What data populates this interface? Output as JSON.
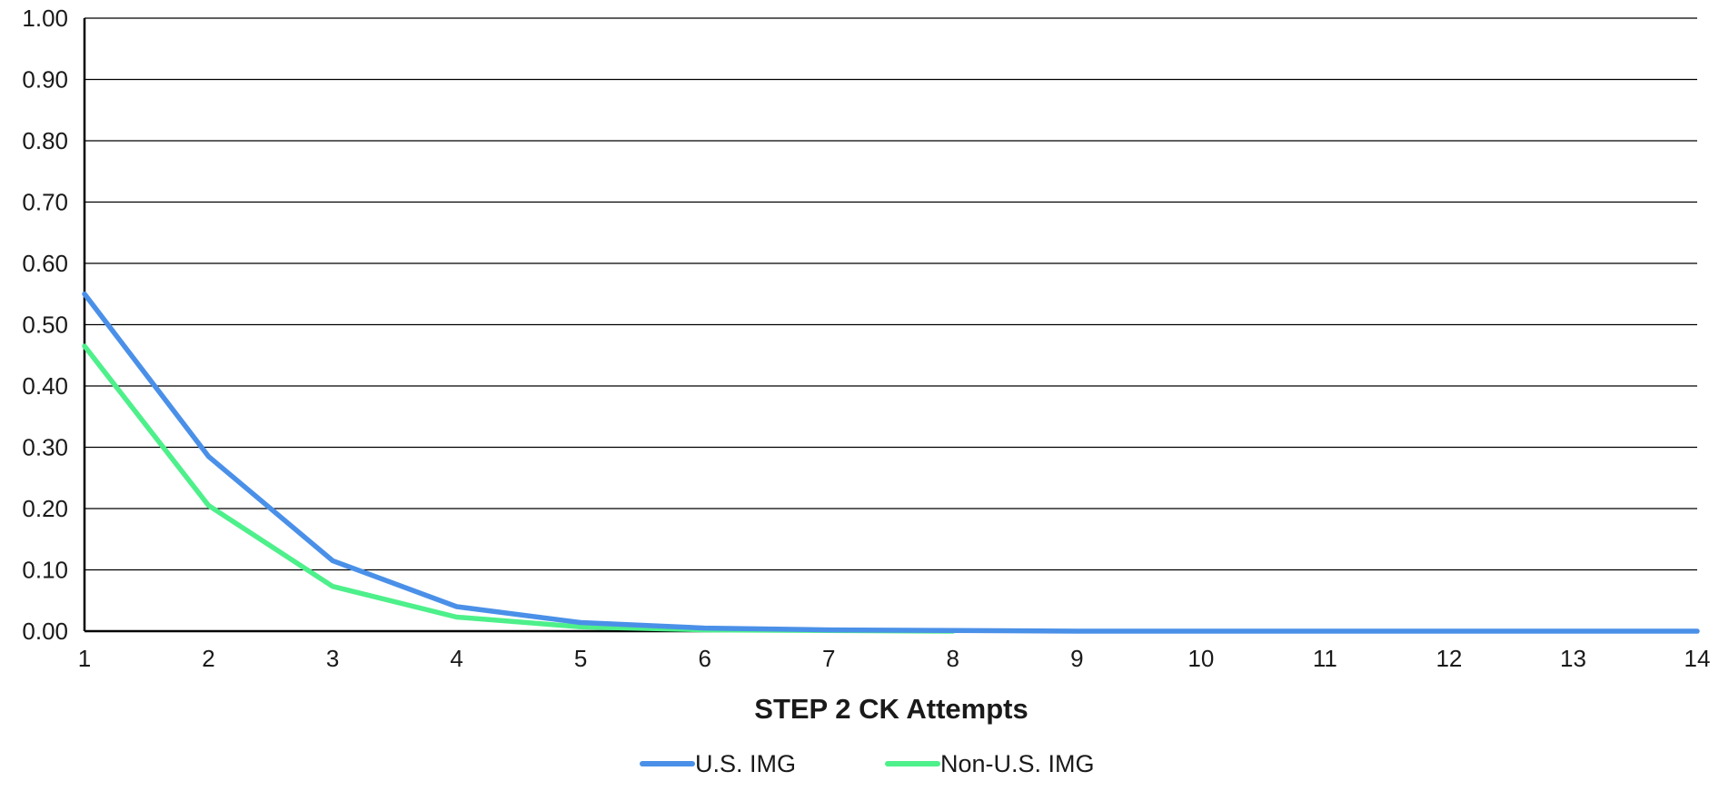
{
  "chart_data": {
    "type": "line",
    "title": "",
    "xlabel": "STEP 2 CK Attempts",
    "ylabel": "",
    "x": [
      1,
      2,
      3,
      4,
      5,
      6,
      7,
      8,
      9,
      10,
      11,
      12,
      13,
      14
    ],
    "xlim": [
      1,
      14
    ],
    "ylim": [
      0,
      1
    ],
    "y_ticks": [
      "0.00",
      "0.10",
      "0.20",
      "0.30",
      "0.40",
      "0.50",
      "0.60",
      "0.70",
      "0.80",
      "0.90",
      "1.00"
    ],
    "x_ticks": [
      "1",
      "2",
      "3",
      "4",
      "5",
      "6",
      "7",
      "8",
      "9",
      "10",
      "11",
      "12",
      "13",
      "14"
    ],
    "grid": true,
    "legend_position": "bottom",
    "series": [
      {
        "name": "U.S. IMG",
        "color": "#4a90e8",
        "values": [
          0.55,
          0.285,
          0.115,
          0.04,
          0.014,
          0.005,
          0.002,
          0.001,
          0.0,
          0.0,
          0.0,
          0.0,
          0.0,
          0.0
        ]
      },
      {
        "name": "Non-U.S. IMG",
        "color": "#4df08a",
        "values": [
          0.465,
          0.205,
          0.073,
          0.023,
          0.007,
          0.002,
          0.001,
          0.0,
          null,
          null,
          null,
          null,
          null,
          null
        ]
      }
    ]
  }
}
